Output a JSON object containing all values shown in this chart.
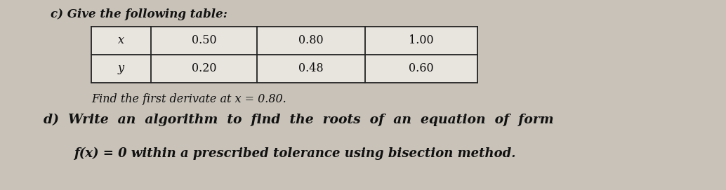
{
  "title_c": "c) Give the following table:",
  "table_headers": [
    "x",
    "0.50",
    "0.80",
    "1.00"
  ],
  "table_row2": [
    "y",
    "0.20",
    "0.48",
    "0.60"
  ],
  "subtitle_c": "Find the first derivate at x = 0.80.",
  "line_d": "d)  Write  an  algorithm  to  find  the  roots  of  an  equation  of  form",
  "line_d2": "f(x) = 0 within a prescribed tolerance using bisection method.",
  "bg_color": "#c8c2b8",
  "text_color": "#111111",
  "table_line_color": "#222222",
  "table_bg": "#e8e4de",
  "font_size_title": 12,
  "font_size_table": 11.5,
  "font_size_sub": 11.5,
  "font_size_d": 13.5,
  "font_size_d2": 13
}
